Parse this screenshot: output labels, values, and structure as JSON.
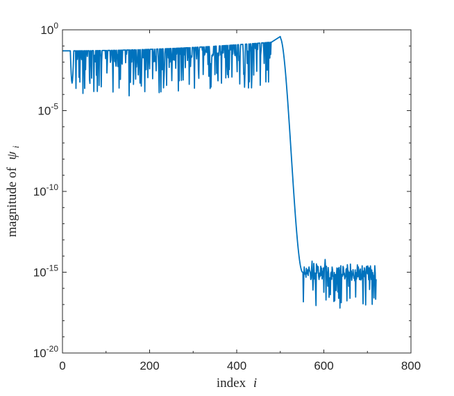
{
  "chart_data": {
    "type": "line",
    "title": "",
    "xlabel": {
      "text": "index",
      "var": "i"
    },
    "ylabel": {
      "text": "magnitude of",
      "var": "ψ",
      "sub": "i"
    },
    "xlim": [
      0,
      800
    ],
    "ylim": [
      1e-20,
      1
    ],
    "yscale": "log",
    "grid": false,
    "box": true,
    "x_ticks": [
      {
        "value": 0,
        "label": "0"
      },
      {
        "value": 200,
        "label": "200"
      },
      {
        "value": 400,
        "label": "400"
      },
      {
        "value": 600,
        "label": "600"
      },
      {
        "value": 800,
        "label": "800"
      }
    ],
    "y_ticks": [
      {
        "exp": 0,
        "base": "10",
        "sup": "0"
      },
      {
        "exp": -5,
        "base": "10",
        "sup": "-5"
      },
      {
        "exp": -10,
        "base": "10",
        "sup": "-10"
      },
      {
        "exp": -15,
        "base": "10",
        "sup": "-15"
      },
      {
        "exp": -20,
        "base": "10",
        "sup": "-20"
      }
    ],
    "series": [
      {
        "color": "#0072BD",
        "description_points": [
          {
            "x": 0,
            "y": 0.05
          },
          {
            "x": 500,
            "y": 0.3
          },
          {
            "x": 550,
            "y": 1e-15
          },
          {
            "x": 720,
            "y": 3e-15
          }
        ]
      }
    ]
  }
}
